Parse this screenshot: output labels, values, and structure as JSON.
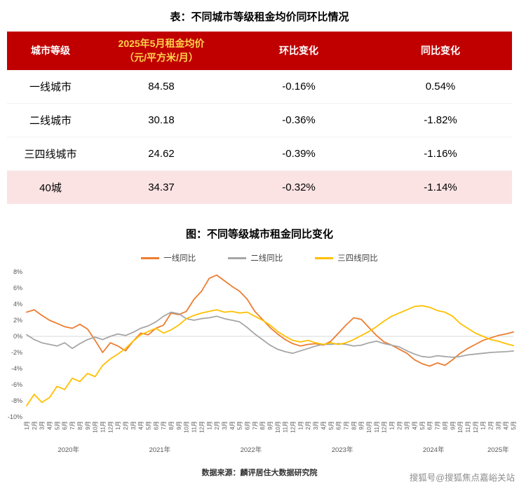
{
  "table": {
    "title": "表：不同城市等级租金均价同环比情况",
    "header": {
      "tier": "城市等级",
      "price_line1": "2025年5月租金均价",
      "price_line2": "（元/平方米/月）",
      "mom": "环比变化",
      "yoy": "同比变化"
    },
    "rows": [
      {
        "tier": "一线城市",
        "price": "84.58",
        "mom": "-0.16%",
        "yoy": "0.54%"
      },
      {
        "tier": "二线城市",
        "price": "30.18",
        "mom": "-0.36%",
        "yoy": "-1.82%"
      },
      {
        "tier": "三四线城市",
        "price": "24.62",
        "mom": "-0.39%",
        "yoy": "-1.16%"
      },
      {
        "tier": "40城",
        "price": "34.37",
        "mom": "-0.32%",
        "yoy": "-1.14%"
      }
    ],
    "colors": {
      "header_bg": "#c00000",
      "header_text": "#ffffff",
      "price_header_text": "#ffd24d",
      "highlight_row_bg": "#fbe3e3"
    }
  },
  "chart_data": {
    "type": "line",
    "title": "图：不同等级城市租金同比变化",
    "ylim": [
      -10,
      8
    ],
    "y_ticks": [
      "8%",
      "6%",
      "4%",
      "2%",
      "0%",
      "-2%",
      "-4%",
      "-6%",
      "-8%",
      "-10%"
    ],
    "grid": "zero-line-only",
    "legend_position": "top",
    "x_labels": [
      "1月",
      "2月",
      "3月",
      "4月",
      "5月",
      "6月",
      "7月",
      "8月",
      "9月",
      "10月",
      "11月",
      "12月",
      "1月",
      "2月",
      "3月",
      "4月",
      "5月",
      "6月",
      "7月",
      "8月",
      "9月",
      "10月",
      "11月",
      "12月",
      "1月",
      "2月",
      "3月",
      "4月",
      "5月",
      "6月",
      "7月",
      "8月",
      "9月",
      "10月",
      "11月",
      "12月",
      "1月",
      "2月",
      "3月",
      "4月",
      "5月",
      "6月",
      "7月",
      "8月",
      "9月",
      "10月",
      "11月",
      "12月",
      "1月",
      "2月",
      "3月",
      "4月",
      "5月",
      "6月",
      "7月",
      "8月",
      "9月",
      "10月",
      "11月",
      "12月",
      "1月",
      "2月",
      "3月",
      "4月",
      "5月"
    ],
    "year_groups": [
      {
        "label": "2020年",
        "count": 12
      },
      {
        "label": "2021年",
        "count": 12
      },
      {
        "label": "2022年",
        "count": 12
      },
      {
        "label": "2023年",
        "count": 12
      },
      {
        "label": "2024年",
        "count": 12
      },
      {
        "label": "2025年",
        "count": 5
      }
    ],
    "series": [
      {
        "name": "一线同比",
        "color": "#ED7D31",
        "values": [
          3.0,
          3.3,
          2.6,
          2.0,
          1.6,
          1.2,
          1.0,
          1.5,
          0.9,
          -0.5,
          -2.0,
          -0.8,
          -1.2,
          -1.8,
          -0.6,
          0.4,
          0.2,
          1.0,
          1.4,
          2.9,
          2.7,
          3.1,
          4.6,
          5.6,
          7.2,
          7.6,
          6.9,
          6.2,
          5.6,
          4.6,
          3.1,
          2.1,
          1.1,
          0.3,
          -0.4,
          -0.9,
          -1.2,
          -1.0,
          -0.9,
          -1.1,
          -0.6,
          0.4,
          1.4,
          2.3,
          2.1,
          1.1,
          0.1,
          -0.7,
          -1.1,
          -1.6,
          -2.1,
          -2.9,
          -3.4,
          -3.7,
          -3.3,
          -3.6,
          -2.9,
          -2.1,
          -1.5,
          -1.0,
          -0.5,
          -0.2,
          0.1,
          0.3,
          0.54
        ]
      },
      {
        "name": "二线同比",
        "color": "#A6A6A6",
        "values": [
          0.2,
          -0.4,
          -0.8,
          -1.0,
          -1.2,
          -0.8,
          -1.5,
          -0.9,
          -0.4,
          -0.1,
          -0.4,
          0.0,
          0.3,
          0.1,
          0.5,
          1.0,
          1.3,
          1.8,
          2.5,
          3.0,
          2.8,
          2.2,
          2.0,
          2.2,
          2.3,
          2.5,
          2.2,
          2.0,
          1.8,
          1.1,
          0.3,
          -0.4,
          -1.1,
          -1.6,
          -1.9,
          -2.1,
          -1.8,
          -1.5,
          -1.2,
          -1.0,
          -1.0,
          -0.9,
          -1.0,
          -1.2,
          -1.1,
          -0.8,
          -0.6,
          -0.9,
          -1.1,
          -1.3,
          -1.8,
          -2.2,
          -2.5,
          -2.6,
          -2.4,
          -2.5,
          -2.6,
          -2.5,
          -2.3,
          -2.2,
          -2.1,
          -2.0,
          -1.95,
          -1.9,
          -1.82
        ]
      },
      {
        "name": "三四线同比",
        "color": "#FFC000",
        "values": [
          -8.6,
          -7.2,
          -8.2,
          -7.6,
          -6.2,
          -6.6,
          -5.2,
          -5.6,
          -4.6,
          -5.0,
          -3.6,
          -2.8,
          -2.2,
          -1.5,
          -0.6,
          0.2,
          0.6,
          1.0,
          0.4,
          0.8,
          1.4,
          2.2,
          2.6,
          2.9,
          3.1,
          3.3,
          3.0,
          3.1,
          2.9,
          3.0,
          2.5,
          2.0,
          1.4,
          0.6,
          0.0,
          -0.5,
          -0.7,
          -0.5,
          -0.8,
          -1.0,
          -0.8,
          -1.0,
          -0.8,
          -0.4,
          0.1,
          0.6,
          1.2,
          1.9,
          2.5,
          2.9,
          3.3,
          3.7,
          3.8,
          3.6,
          3.2,
          3.0,
          2.5,
          1.6,
          1.0,
          0.4,
          0.0,
          -0.4,
          -0.6,
          -0.9,
          -1.16
        ]
      }
    ]
  },
  "source": "数据来源：麟评居住大数据研究院",
  "watermark": "搜狐号@搜狐焦点嘉峪关站"
}
